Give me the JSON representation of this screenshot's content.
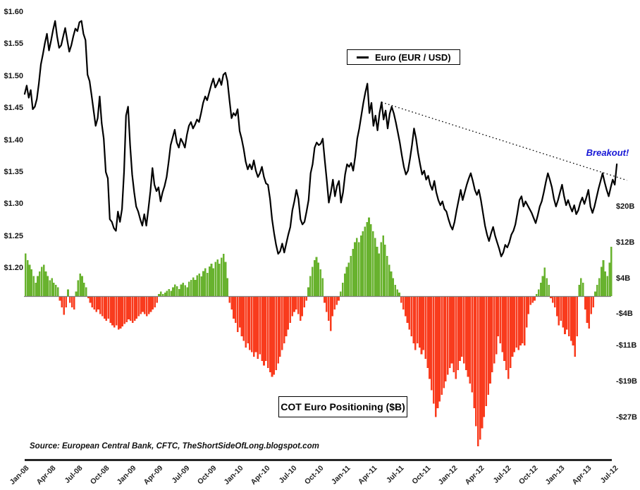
{
  "legend": {
    "label": "Euro (EUR / USD)"
  },
  "annotation": {
    "text": "Breakout!",
    "color": "#1717D6"
  },
  "bar_box_label": "COT Euro Positioning ($B)",
  "source_note": "Source: European Central Bank, CFTC, TheShortSideOfLong.blogspot.com",
  "chart_data": {
    "type": "line+bar",
    "x_frequency": "weekly",
    "x_tick_labels": [
      "Jan-08",
      "Apr-08",
      "Jul-08",
      "Oct-08",
      "Jan-09",
      "Apr-09",
      "Jul-09",
      "Oct-09",
      "Jan-10",
      "Apr-10",
      "Jul-10",
      "Oct-10",
      "Jan-11",
      "Apr-11",
      "Jul-11",
      "Oct-11",
      "Jan-12",
      "Apr-12",
      "Jul-12",
      "Oct-12",
      "Jan-13",
      "Apr-13",
      "Jul-12"
    ],
    "price_axis": {
      "side": "left",
      "ticks": [
        "$1.60",
        "$1.55",
        "$1.50",
        "$1.45",
        "$1.40",
        "$1.35",
        "$1.30",
        "$1.25",
        "$1.20"
      ],
      "values": [
        1.6,
        1.55,
        1.5,
        1.45,
        1.4,
        1.35,
        1.3,
        1.25,
        1.2
      ],
      "range": [
        1.2,
        1.6
      ]
    },
    "cot_axis": {
      "side": "right",
      "ticks": [
        "$20B",
        "$12B",
        "$4B",
        "-$4B",
        "-$11B",
        "-$19B",
        "-$27B"
      ],
      "values": [
        20,
        12,
        4,
        -4,
        -11,
        -19,
        -27
      ],
      "range": [
        -34,
        20
      ]
    },
    "series": [
      {
        "name": "Euro (EUR / USD)",
        "type": "line",
        "color": "#000000",
        "values": [
          1.472,
          1.485,
          1.466,
          1.478,
          1.448,
          1.452,
          1.464,
          1.488,
          1.518,
          1.534,
          1.552,
          1.566,
          1.54,
          1.555,
          1.572,
          1.586,
          1.562,
          1.544,
          1.548,
          1.562,
          1.575,
          1.556,
          1.538,
          1.548,
          1.562,
          1.574,
          1.57,
          1.584,
          1.586,
          1.566,
          1.556,
          1.502,
          1.492,
          1.47,
          1.446,
          1.422,
          1.434,
          1.468,
          1.426,
          1.402,
          1.35,
          1.34,
          1.276,
          1.272,
          1.262,
          1.258,
          1.288,
          1.272,
          1.292,
          1.35,
          1.438,
          1.452,
          1.392,
          1.346,
          1.318,
          1.296,
          1.288,
          1.276,
          1.266,
          1.284,
          1.266,
          1.292,
          1.32,
          1.356,
          1.33,
          1.32,
          1.326,
          1.304,
          1.318,
          1.328,
          1.342,
          1.366,
          1.392,
          1.404,
          1.416,
          1.396,
          1.388,
          1.402,
          1.396,
          1.388,
          1.408,
          1.422,
          1.428,
          1.418,
          1.424,
          1.432,
          1.428,
          1.442,
          1.458,
          1.468,
          1.462,
          1.474,
          1.486,
          1.496,
          1.482,
          1.488,
          1.496,
          1.486,
          1.502,
          1.505,
          1.492,
          1.462,
          1.434,
          1.442,
          1.438,
          1.448,
          1.414,
          1.402,
          1.386,
          1.366,
          1.354,
          1.362,
          1.354,
          1.368,
          1.352,
          1.342,
          1.348,
          1.358,
          1.342,
          1.332,
          1.33,
          1.308,
          1.276,
          1.254,
          1.236,
          1.222,
          1.226,
          1.238,
          1.224,
          1.238,
          1.252,
          1.264,
          1.29,
          1.304,
          1.322,
          1.308,
          1.276,
          1.268,
          1.272,
          1.288,
          1.306,
          1.348,
          1.362,
          1.388,
          1.396,
          1.392,
          1.394,
          1.402,
          1.368,
          1.336,
          1.302,
          1.318,
          1.338,
          1.312,
          1.328,
          1.336,
          1.302,
          1.318,
          1.346,
          1.362,
          1.358,
          1.364,
          1.352,
          1.374,
          1.402,
          1.418,
          1.438,
          1.458,
          1.474,
          1.488,
          1.442,
          1.458,
          1.422,
          1.438,
          1.415,
          1.442,
          1.459,
          1.432,
          1.446,
          1.418,
          1.441,
          1.452,
          1.442,
          1.428,
          1.412,
          1.396,
          1.376,
          1.358,
          1.346,
          1.352,
          1.37,
          1.392,
          1.418,
          1.402,
          1.38,
          1.362,
          1.346,
          1.352,
          1.338,
          1.344,
          1.33,
          1.322,
          1.336,
          1.318,
          1.306,
          1.298,
          1.304,
          1.292,
          1.288,
          1.276,
          1.266,
          1.26,
          1.272,
          1.29,
          1.306,
          1.322,
          1.306,
          1.318,
          1.33,
          1.34,
          1.348,
          1.336,
          1.322,
          1.314,
          1.322,
          1.306,
          1.286,
          1.266,
          1.252,
          1.242,
          1.254,
          1.264,
          1.25,
          1.24,
          1.23,
          1.218,
          1.224,
          1.236,
          1.232,
          1.24,
          1.252,
          1.258,
          1.268,
          1.286,
          1.306,
          1.312,
          1.296,
          1.304,
          1.298,
          1.292,
          1.286,
          1.278,
          1.27,
          1.282,
          1.296,
          1.304,
          1.318,
          1.334,
          1.348,
          1.338,
          1.326,
          1.308,
          1.296,
          1.306,
          1.318,
          1.33,
          1.312,
          1.298,
          1.306,
          1.296,
          1.288,
          1.298,
          1.284,
          1.29,
          1.302,
          1.31,
          1.3,
          1.31,
          1.322,
          1.296,
          1.286,
          1.296,
          1.31,
          1.324,
          1.336,
          1.348,
          1.334,
          1.322,
          1.312,
          1.326,
          1.338,
          1.33,
          1.362
        ]
      },
      {
        "name": "COT Euro Positioning ($B)",
        "type": "bar",
        "color_positive": "#68B22E",
        "color_negative": "#F93B1D",
        "values": [
          9.5,
          8.0,
          7.0,
          6.0,
          4.5,
          3.0,
          4.5,
          5.5,
          6.5,
          7.0,
          5.5,
          4.5,
          3.5,
          4.0,
          3.0,
          2.5,
          2.0,
          -1.0,
          -2.5,
          -4.2,
          -2.5,
          1.5,
          -1.5,
          -2.5,
          -3.0,
          1.0,
          3.5,
          5.0,
          4.5,
          3.0,
          2.0,
          -0.5,
          -1.5,
          -2.5,
          -3.0,
          -3.5,
          -3.0,
          -4.0,
          -4.5,
          -5.0,
          -5.5,
          -5.0,
          -6.0,
          -6.5,
          -7.0,
          -6.5,
          -7.5,
          -7.2,
          -6.8,
          -6.2,
          -5.8,
          -5.2,
          -5.5,
          -6.0,
          -5.5,
          -5.0,
          -4.5,
          -4.0,
          -3.5,
          -4.0,
          -4.5,
          -4.0,
          -3.5,
          -3.0,
          -2.5,
          -1.5,
          0.5,
          1.0,
          0.5,
          0.8,
          1.2,
          1.6,
          1.2,
          2.0,
          2.6,
          2.2,
          1.6,
          2.6,
          3.0,
          2.4,
          2.0,
          3.2,
          3.6,
          4.2,
          3.6,
          4.6,
          5.0,
          4.4,
          5.6,
          6.2,
          5.2,
          6.6,
          7.2,
          6.2,
          7.6,
          8.2,
          7.2,
          8.6,
          9.4,
          7.6,
          4.0,
          -1.5,
          -3.0,
          -5.0,
          -6.0,
          -8.0,
          -7.0,
          -9.0,
          -10.0,
          -11.5,
          -10.5,
          -12.0,
          -12.5,
          -13.5,
          -12.5,
          -14.0,
          -13.0,
          -14.5,
          -15.5,
          -14.5,
          -16.0,
          -17.0,
          -18.0,
          -17.5,
          -16.5,
          -15.0,
          -13.5,
          -12.0,
          -10.5,
          -9.0,
          -7.5,
          -6.0,
          -4.5,
          -3.5,
          -3.0,
          -4.0,
          -5.5,
          -4.5,
          -2.5,
          -1.0,
          2.0,
          4.5,
          6.5,
          8.0,
          8.7,
          7.5,
          6.0,
          4.0,
          -1.5,
          -3.5,
          -5.5,
          -7.8,
          -4.5,
          -3.0,
          -2.0,
          -1.0,
          1.0,
          3.0,
          5.0,
          6.5,
          7.5,
          9.0,
          10.5,
          12.0,
          13.0,
          12.0,
          13.5,
          14.5,
          15.5,
          16.5,
          17.5,
          16.0,
          14.5,
          13.0,
          11.0,
          9.5,
          12.0,
          13.5,
          11.5,
          9.0,
          7.0,
          5.5,
          4.0,
          2.5,
          1.5,
          0.8,
          -1.5,
          -3.0,
          -4.5,
          -6.0,
          -7.5,
          -9.0,
          -10.5,
          -12.0,
          -10.5,
          -11.5,
          -13.0,
          -12.0,
          -14.0,
          -16.0,
          -18.5,
          -21.0,
          -24.0,
          -27.0,
          -25.0,
          -23.5,
          -22.0,
          -20.5,
          -19.0,
          -17.5,
          -16.0,
          -15.0,
          -17.0,
          -18.5,
          -16.5,
          -14.5,
          -13.5,
          -15.0,
          -16.5,
          -18.0,
          -19.5,
          -21.5,
          -25.0,
          -29.0,
          -33.5,
          -32.0,
          -29.5,
          -27.0,
          -24.5,
          -22.0,
          -19.5,
          -17.0,
          -15.0,
          -13.0,
          -9.0,
          -10.5,
          -12.5,
          -14.5,
          -16.5,
          -18.5,
          -16.0,
          -13.5,
          -12.5,
          -11.5,
          -12.0,
          -11.0,
          -10.5,
          -11.0,
          -7.0,
          -4.0,
          -2.0,
          -1.5,
          -1.0,
          0.5,
          1.5,
          3.0,
          4.5,
          6.4,
          4.0,
          2.5,
          -0.5,
          -1.5,
          -2.5,
          -4.5,
          -6.5,
          -5.5,
          -7.0,
          -8.5,
          -7.5,
          -9.0,
          -10.0,
          -11.0,
          -13.5,
          -9.0,
          2.5,
          4.0,
          3.0,
          -3.0,
          -6.0,
          -7.2,
          -4.0,
          -2.5,
          1.0,
          2.5,
          4.0,
          6.5,
          8.0,
          5.5,
          4.5,
          7.5,
          11.0
        ]
      }
    ],
    "trendline": {
      "style": "dotted",
      "start_week": 176,
      "start_price": 1.459,
      "end_week": 297,
      "end_price": 1.337
    }
  }
}
